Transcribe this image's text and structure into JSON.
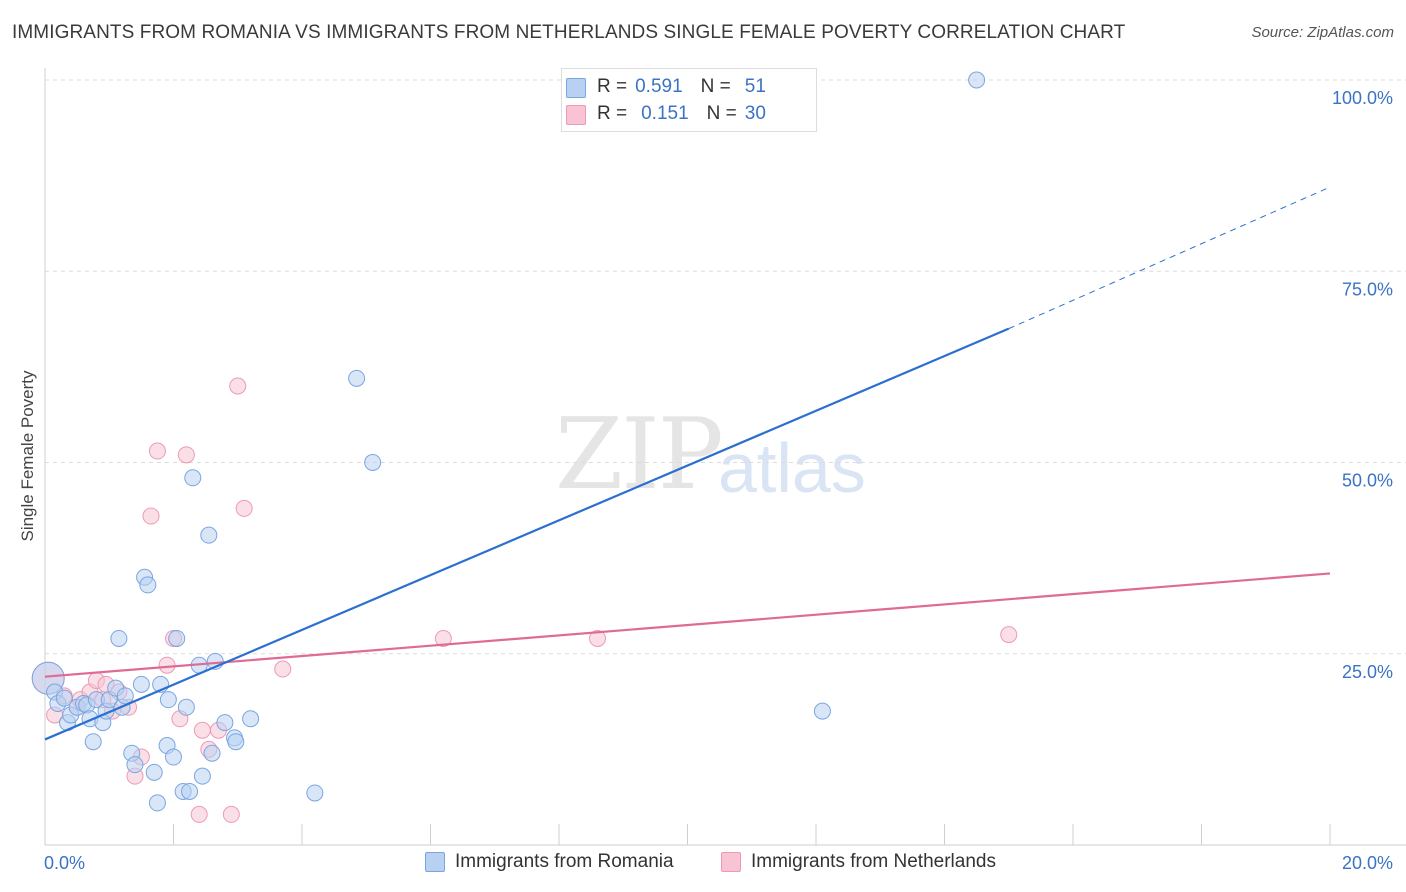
{
  "title": "IMMIGRANTS FROM ROMANIA VS IMMIGRANTS FROM NETHERLANDS SINGLE FEMALE POVERTY CORRELATION CHART",
  "source": "Source: ZipAtlas.com",
  "watermark": {
    "zip": "ZIP",
    "atlas": "atlas"
  },
  "legend": {
    "rows": [
      {
        "r_label": "R =",
        "r_value": "0.591",
        "n_label": "N =",
        "n_value": "51"
      },
      {
        "r_label": "R =",
        "r_value": "0.151",
        "n_label": "N =",
        "n_value": "30"
      }
    ]
  },
  "colors": {
    "romania_fill": "#b8d1f3",
    "romania_stroke": "#7aa6e0",
    "romania_line": "#2b6fcf",
    "netherlands_fill": "#f8c4d4",
    "netherlands_stroke": "#ec9ab5",
    "netherlands_line": "#e06a96",
    "tick_label": "#3b73c4"
  },
  "chart_data": {
    "type": "scatter",
    "title": "IMMIGRANTS FROM ROMANIA VS IMMIGRANTS FROM NETHERLANDS SINGLE FEMALE POVERTY CORRELATION CHART",
    "xlabel": "",
    "ylabel": "Single Female Poverty",
    "xlim": [
      0,
      20
    ],
    "ylim": [
      0,
      100
    ],
    "x_tick_labels": [
      "0.0%",
      "20.0%"
    ],
    "y_ticks": [
      25,
      50,
      75,
      100
    ],
    "y_tick_labels": [
      "25.0%",
      "50.0%",
      "75.0%",
      "100.0%"
    ],
    "grid": true,
    "series": [
      {
        "name": "Immigrants from Romania",
        "trend": {
          "x": [
            0,
            15
          ],
          "y": [
            13.8,
            67.5
          ],
          "dashed_to": [
            20,
            86
          ]
        },
        "points": [
          {
            "x": 0.05,
            "y": 21.8,
            "big": true
          },
          {
            "x": 0.15,
            "y": 20.0
          },
          {
            "x": 0.2,
            "y": 18.5
          },
          {
            "x": 0.3,
            "y": 19.2
          },
          {
            "x": 0.35,
            "y": 16.0
          },
          {
            "x": 0.4,
            "y": 17.0
          },
          {
            "x": 0.5,
            "y": 18.0
          },
          {
            "x": 0.6,
            "y": 18.5
          },
          {
            "x": 0.65,
            "y": 18.3
          },
          {
            "x": 0.7,
            "y": 16.5
          },
          {
            "x": 0.75,
            "y": 13.5
          },
          {
            "x": 0.8,
            "y": 19.0
          },
          {
            "x": 0.9,
            "y": 16.0
          },
          {
            "x": 0.95,
            "y": 17.5
          },
          {
            "x": 1.0,
            "y": 19.0
          },
          {
            "x": 1.1,
            "y": 20.5
          },
          {
            "x": 1.2,
            "y": 18.0
          },
          {
            "x": 1.25,
            "y": 19.5
          },
          {
            "x": 1.15,
            "y": 27.0
          },
          {
            "x": 1.35,
            "y": 12.0
          },
          {
            "x": 1.4,
            "y": 10.5
          },
          {
            "x": 1.5,
            "y": 21.0
          },
          {
            "x": 1.55,
            "y": 35.0
          },
          {
            "x": 1.6,
            "y": 34.0
          },
          {
            "x": 1.7,
            "y": 9.5
          },
          {
            "x": 1.75,
            "y": 5.5
          },
          {
            "x": 1.8,
            "y": 21.0
          },
          {
            "x": 1.9,
            "y": 13.0
          },
          {
            "x": 1.92,
            "y": 19.0
          },
          {
            "x": 2.0,
            "y": 11.5
          },
          {
            "x": 2.05,
            "y": 27.0
          },
          {
            "x": 2.15,
            "y": 7.0
          },
          {
            "x": 2.2,
            "y": 18.0
          },
          {
            "x": 2.25,
            "y": 7.0
          },
          {
            "x": 2.3,
            "y": 48.0
          },
          {
            "x": 2.4,
            "y": 23.5
          },
          {
            "x": 2.45,
            "y": 9.0
          },
          {
            "x": 2.55,
            "y": 40.5
          },
          {
            "x": 2.6,
            "y": 12.0
          },
          {
            "x": 2.65,
            "y": 24.0
          },
          {
            "x": 2.8,
            "y": 16.0
          },
          {
            "x": 2.95,
            "y": 14.0
          },
          {
            "x": 2.97,
            "y": 13.5
          },
          {
            "x": 3.2,
            "y": 16.5
          },
          {
            "x": 4.2,
            "y": 6.8
          },
          {
            "x": 4.85,
            "y": 61.0
          },
          {
            "x": 5.1,
            "y": 50.0
          },
          {
            "x": 12.1,
            "y": 17.5
          },
          {
            "x": 14.5,
            "y": 100.0
          }
        ]
      },
      {
        "name": "Immigrants from Netherlands",
        "trend": {
          "x": [
            0,
            20
          ],
          "y": [
            22.0,
            35.5
          ]
        },
        "points": [
          {
            "x": 0.05,
            "y": 21.8,
            "big": true
          },
          {
            "x": 0.15,
            "y": 17.0
          },
          {
            "x": 0.3,
            "y": 19.5
          },
          {
            "x": 0.5,
            "y": 18.0
          },
          {
            "x": 0.55,
            "y": 19.0
          },
          {
            "x": 0.7,
            "y": 20.0
          },
          {
            "x": 0.8,
            "y": 21.5
          },
          {
            "x": 0.9,
            "y": 19.0
          },
          {
            "x": 0.95,
            "y": 21.0
          },
          {
            "x": 1.05,
            "y": 17.5
          },
          {
            "x": 1.15,
            "y": 20.0
          },
          {
            "x": 1.3,
            "y": 18.0
          },
          {
            "x": 1.4,
            "y": 9.0
          },
          {
            "x": 1.5,
            "y": 11.5
          },
          {
            "x": 1.65,
            "y": 43.0
          },
          {
            "x": 1.75,
            "y": 51.5
          },
          {
            "x": 1.9,
            "y": 23.5
          },
          {
            "x": 2.0,
            "y": 27.0
          },
          {
            "x": 2.1,
            "y": 16.5
          },
          {
            "x": 2.2,
            "y": 51.0
          },
          {
            "x": 2.4,
            "y": 4.0
          },
          {
            "x": 2.45,
            "y": 15.0
          },
          {
            "x": 2.55,
            "y": 12.5
          },
          {
            "x": 2.7,
            "y": 15.0
          },
          {
            "x": 2.9,
            "y": 4.0
          },
          {
            "x": 3.0,
            "y": 60.0
          },
          {
            "x": 3.1,
            "y": 44.0
          },
          {
            "x": 3.7,
            "y": 23.0
          },
          {
            "x": 6.2,
            "y": 27.0
          },
          {
            "x": 8.6,
            "y": 27.0
          },
          {
            "x": 15.0,
            "y": 27.5
          }
        ]
      }
    ]
  }
}
